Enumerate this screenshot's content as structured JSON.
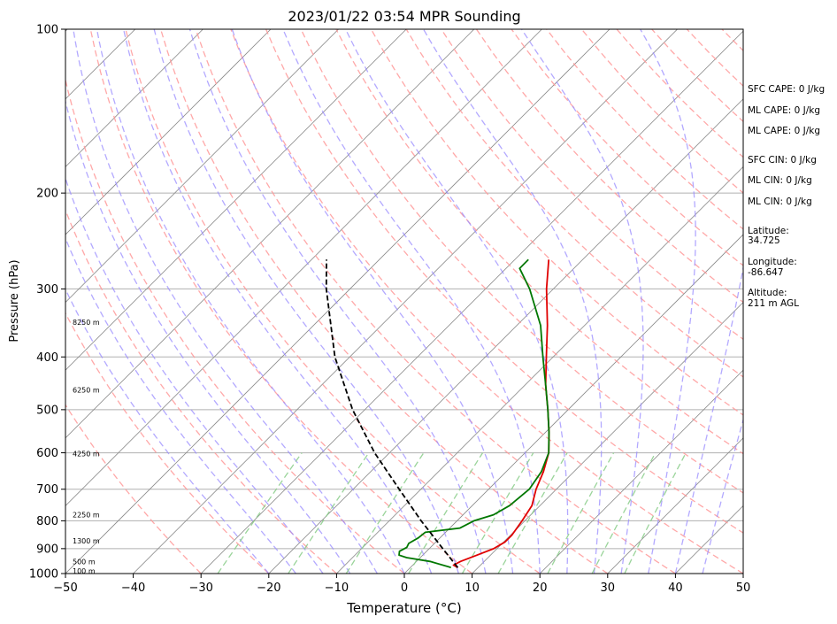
{
  "chart_data": {
    "type": "line",
    "title": "2023/01/22 03:54 MPR Sounding",
    "xlabel": "Temperature (°C)",
    "ylabel": "Pressure (hPa)",
    "xlim": [
      -50,
      50
    ],
    "ylim": [
      1000,
      100
    ],
    "y_scale": "log",
    "x_ticks": [
      -50,
      -40,
      -30,
      -20,
      -10,
      0,
      10,
      20,
      30,
      40,
      50
    ],
    "y_ticks": [
      1000,
      900,
      800,
      700,
      600,
      500,
      400,
      300,
      200,
      100
    ],
    "grid": true,
    "colors": {
      "temperature": "#e00000",
      "dewpoint": "#007700",
      "parcel": "#000000",
      "dry_adiabat": "#ff9999",
      "moist_adiabat": "#9a8cff",
      "mixing_ratio": "#88cc88",
      "isotherm": "#888888"
    },
    "series": [
      {
        "values": [
          {
            "p": 975,
            "t": 7.0
          },
          {
            "p": 965,
            "t": 6.0
          },
          {
            "p": 950,
            "t": 6.5
          },
          {
            "p": 925,
            "t": 8.0
          },
          {
            "p": 900,
            "t": 9.5
          },
          {
            "p": 875,
            "t": 10.2
          },
          {
            "p": 850,
            "t": 10.2
          },
          {
            "p": 800,
            "t": 9.6
          },
          {
            "p": 750,
            "t": 8.8
          },
          {
            "p": 700,
            "t": 7.0
          },
          {
            "p": 650,
            "t": 5.5
          },
          {
            "p": 600,
            "t": 3.5
          },
          {
            "p": 550,
            "t": 0.5
          },
          {
            "p": 500,
            "t": -3.0
          },
          {
            "p": 450,
            "t": -7.0
          },
          {
            "p": 400,
            "t": -11.0
          },
          {
            "p": 350,
            "t": -15.5
          },
          {
            "p": 300,
            "t": -21.0
          },
          {
            "p": 265,
            "t": -25.0
          }
        ]
      },
      {
        "values": [
          {
            "p": 975,
            "t": 6.0
          },
          {
            "p": 950,
            "t": 2.0
          },
          {
            "p": 935,
            "t": -2.0
          },
          {
            "p": 925,
            "t": -3.5
          },
          {
            "p": 910,
            "t": -4.0
          },
          {
            "p": 895,
            "t": -3.5
          },
          {
            "p": 880,
            "t": -3.8
          },
          {
            "p": 860,
            "t": -3.2
          },
          {
            "p": 840,
            "t": -3.0
          },
          {
            "p": 825,
            "t": 1.5
          },
          {
            "p": 800,
            "t": 2.5
          },
          {
            "p": 780,
            "t": 4.5
          },
          {
            "p": 750,
            "t": 5.5
          },
          {
            "p": 700,
            "t": 6.0
          },
          {
            "p": 650,
            "t": 5.2
          },
          {
            "p": 600,
            "t": 3.5
          },
          {
            "p": 550,
            "t": 0.5
          },
          {
            "p": 500,
            "t": -3.0
          },
          {
            "p": 450,
            "t": -7.0
          },
          {
            "p": 400,
            "t": -11.5
          },
          {
            "p": 350,
            "t": -16.5
          },
          {
            "p": 300,
            "t": -23.5
          },
          {
            "p": 275,
            "t": -28.0
          },
          {
            "p": 265,
            "t": -28.0
          }
        ]
      },
      {
        "values": [
          {
            "p": 975,
            "t": 7.0
          },
          {
            "p": 900,
            "t": 2.0
          },
          {
            "p": 800,
            "t": -5.3
          },
          {
            "p": 700,
            "t": -13.2
          },
          {
            "p": 600,
            "t": -22.2
          },
          {
            "p": 500,
            "t": -31.8
          },
          {
            "p": 400,
            "t": -42.2
          },
          {
            "p": 300,
            "t": -53.5
          },
          {
            "p": 265,
            "t": -57.8
          }
        ]
      }
    ],
    "height_labels": [
      {
        "label": "100 m",
        "p": 988
      },
      {
        "label": "500 m",
        "p": 950
      },
      {
        "label": "1300 m",
        "p": 870
      },
      {
        "label": "2250 m",
        "p": 780
      },
      {
        "label": "4250 m",
        "p": 602
      },
      {
        "label": "6250 m",
        "p": 460
      },
      {
        "label": "8250 m",
        "p": 345
      }
    ],
    "annotations": [
      "SFC CAPE: 0 J/kg",
      "ML CAPE: 0 J/kg",
      "ML CAPE: 0 J/kg",
      "SFC CIN: 0 J/kg",
      "ML CIN: 0 J/kg",
      "ML CIN: 0 J/kg",
      "Latitude:",
      "34.725",
      "Longitude:",
      "-86.647",
      "Altitude:",
      "211 m AGL"
    ]
  }
}
